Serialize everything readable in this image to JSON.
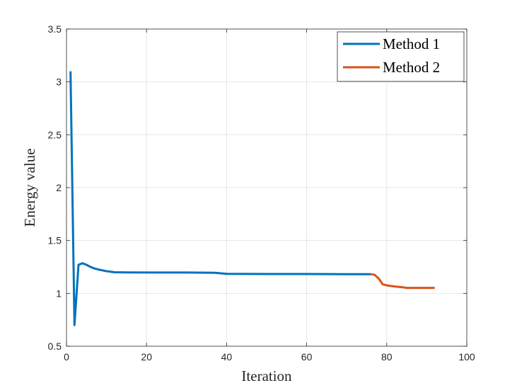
{
  "chart_data": {
    "type": "line",
    "xlabel": "Iteration",
    "ylabel": "Energy value",
    "xlim": [
      0,
      100
    ],
    "ylim": [
      0.5,
      3.5
    ],
    "xticks": [
      0,
      20,
      40,
      60,
      80,
      100
    ],
    "yticks": [
      0.5,
      1,
      1.5,
      2,
      2.5,
      3,
      3.5
    ],
    "xtick_labels": [
      "0",
      "20",
      "40",
      "60",
      "80",
      "100"
    ],
    "ytick_labels": [
      "0.5",
      "1",
      "1.5",
      "2",
      "2.5",
      "3",
      "3.5"
    ],
    "grid": true,
    "legend_position": "top-right",
    "series": [
      {
        "name": "Method 1",
        "color": "#0072BD",
        "x": [
          1,
          2,
          3,
          4,
          5,
          6,
          7,
          8,
          10,
          12,
          15,
          20,
          30,
          37,
          40,
          50,
          60,
          70,
          76
        ],
        "y": [
          3.1,
          0.7,
          1.27,
          1.285,
          1.27,
          1.25,
          1.235,
          1.225,
          1.21,
          1.2,
          1.198,
          1.197,
          1.197,
          1.195,
          1.185,
          1.183,
          1.183,
          1.182,
          1.182
        ]
      },
      {
        "name": "Method 2",
        "color": "#D95319",
        "x": [
          76,
          77,
          78,
          79,
          80,
          82,
          84,
          85,
          88,
          90,
          92
        ],
        "y": [
          1.182,
          1.175,
          1.14,
          1.085,
          1.075,
          1.065,
          1.058,
          1.052,
          1.052,
          1.052,
          1.052
        ]
      }
    ]
  }
}
